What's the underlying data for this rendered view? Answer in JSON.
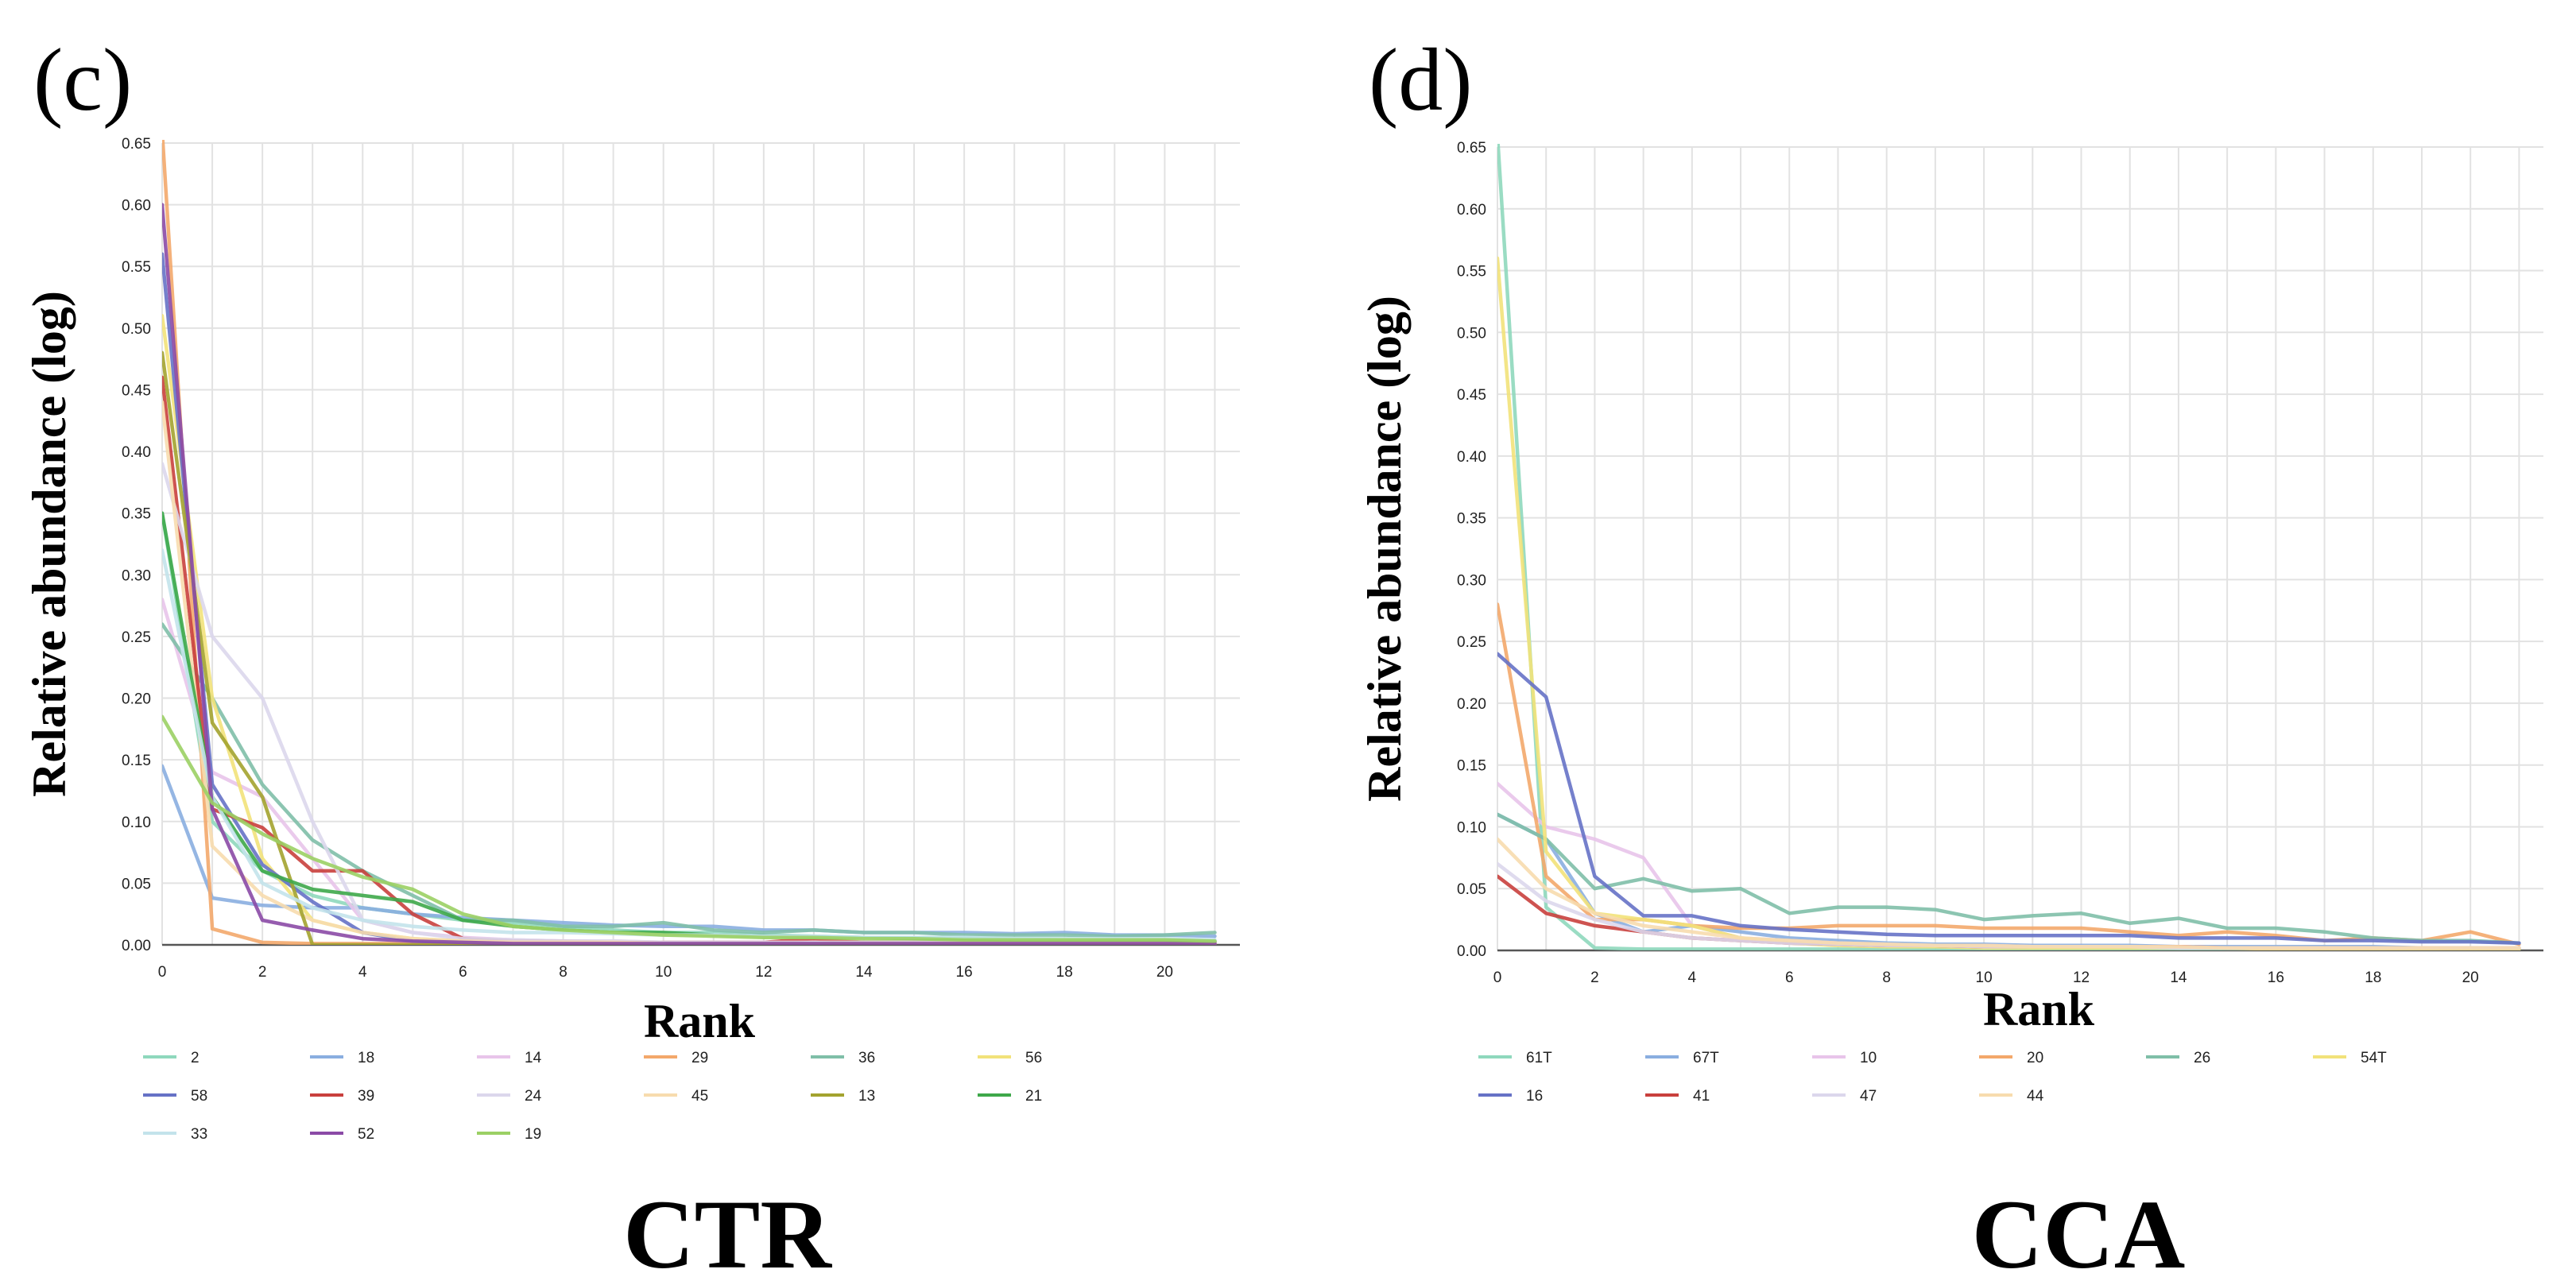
{
  "panels": [
    {
      "letter": "(c)",
      "title": "CTR"
    },
    {
      "letter": "(d)",
      "title": "CCA"
    }
  ],
  "chart_data": [
    {
      "type": "line",
      "xlabel": "Rank",
      "ylabel": "Relative abundance (log)",
      "xlim": [
        0,
        21.5
      ],
      "ylim": [
        0,
        0.65
      ],
      "xticks": [
        0,
        2,
        4,
        6,
        8,
        10,
        12,
        14,
        16,
        18,
        20
      ],
      "yticks": [
        0.0,
        0.05,
        0.1,
        0.15,
        0.2,
        0.25,
        0.3,
        0.35,
        0.4,
        0.45,
        0.5,
        0.55,
        0.6,
        0.65
      ],
      "grid": true,
      "legend_position": "bottom",
      "series": [
        {
          "name": "2",
          "color": "#8fd8bd",
          "values": [
            0.35,
            0.1,
            0.06,
            0.04,
            0.03,
            0.025,
            0.02,
            0.018,
            0.015,
            0.012,
            0.01,
            0.01,
            0.008,
            0.007,
            0.006,
            0.006,
            0.005,
            0.005,
            0.004,
            0.004,
            0.004,
            0.003
          ]
        },
        {
          "name": "18",
          "color": "#8aaee0",
          "values": [
            0.145,
            0.038,
            0.032,
            0.03,
            0.03,
            0.025,
            0.022,
            0.02,
            0.018,
            0.016,
            0.015,
            0.015,
            0.012,
            0.012,
            0.01,
            0.01,
            0.01,
            0.009,
            0.01,
            0.008,
            0.008,
            0.007
          ]
        },
        {
          "name": "14",
          "color": "#e8c4ea",
          "values": [
            0.28,
            0.14,
            0.12,
            0.07,
            0.02,
            0.01,
            0.006,
            0.004,
            0.003,
            0.003,
            0.002,
            0.002,
            0.002,
            0.002,
            0.002,
            0.001,
            0.001,
            0.001,
            0.001,
            0.001,
            0.001,
            0.001
          ]
        },
        {
          "name": "29",
          "color": "#f3a86b",
          "values": [
            0.66,
            0.013,
            0.002,
            0.001,
            0.001,
            0.001,
            0.001,
            0.001,
            0.001,
            0.001,
            0.001,
            0.001,
            0.001,
            0.001,
            0.001,
            0.001,
            0.001,
            0.001,
            0.001,
            0.001,
            0.001,
            0.001
          ]
        },
        {
          "name": "36",
          "color": "#7fbfa8",
          "values": [
            0.26,
            0.2,
            0.13,
            0.085,
            0.06,
            0.04,
            0.02,
            0.02,
            0.015,
            0.015,
            0.018,
            0.012,
            0.01,
            0.012,
            0.01,
            0.01,
            0.008,
            0.008,
            0.008,
            0.007,
            0.008,
            0.01
          ]
        },
        {
          "name": "56",
          "color": "#f2e27a",
          "values": [
            0.51,
            0.2,
            0.07,
            0.02,
            0.01,
            0.005,
            0.003,
            0.002,
            0.002,
            0.002,
            0.002,
            0.001,
            0.001,
            0.001,
            0.001,
            0.001,
            0.001,
            0.001,
            0.001,
            0.001,
            0.001,
            0.001
          ]
        },
        {
          "name": "58",
          "color": "#6672c6",
          "values": [
            0.56,
            0.13,
            0.065,
            0.035,
            0.01,
            0.003,
            0.002,
            0.001,
            0.001,
            0.001,
            0.001,
            0.001,
            0.001,
            0.001,
            0.001,
            0.001,
            0.001,
            0.001,
            0.001,
            0.001,
            0.001,
            0.001
          ]
        },
        {
          "name": "39",
          "color": "#c9403d",
          "values": [
            0.46,
            0.11,
            0.095,
            0.06,
            0.06,
            0.025,
            0.005,
            0.003,
            0.003,
            0.002,
            0.002,
            0.002,
            0.002,
            0.005,
            0.002,
            0.002,
            0.002,
            0.002,
            0.002,
            0.002,
            0.002,
            0.002
          ]
        },
        {
          "name": "24",
          "color": "#dcd7ec",
          "values": [
            0.39,
            0.25,
            0.2,
            0.1,
            0.02,
            0.01,
            0.005,
            0.004,
            0.003,
            0.003,
            0.002,
            0.002,
            0.002,
            0.002,
            0.002,
            0.002,
            0.002,
            0.002,
            0.002,
            0.002,
            0.002,
            0.002
          ]
        },
        {
          "name": "45",
          "color": "#f7dcae",
          "values": [
            0.44,
            0.08,
            0.04,
            0.02,
            0.01,
            0.005,
            0.003,
            0.002,
            0.002,
            0.002,
            0.001,
            0.001,
            0.001,
            0.001,
            0.001,
            0.001,
            0.001,
            0.001,
            0.001,
            0.001,
            0.001,
            0.001
          ]
        },
        {
          "name": "13",
          "color": "#a3a32f",
          "values": [
            0.48,
            0.18,
            0.12,
            0.0,
            0.0,
            0.0,
            0.0,
            0.0,
            0.0,
            0.0,
            0.0,
            0.0,
            0.0,
            0.0,
            0.0,
            0.0,
            0.0,
            0.0,
            0.0,
            0.0,
            0.0,
            0.0
          ]
        },
        {
          "name": "21",
          "color": "#3ea84a",
          "values": [
            0.35,
            0.12,
            0.06,
            0.045,
            0.04,
            0.035,
            0.02,
            0.015,
            0.012,
            0.01,
            0.01,
            0.008,
            0.007,
            0.006,
            0.006,
            0.005,
            0.005,
            0.004,
            0.004,
            0.004,
            0.004,
            0.003
          ]
        },
        {
          "name": "33",
          "color": "#c3e3eb",
          "values": [
            0.32,
            0.12,
            0.05,
            0.03,
            0.02,
            0.015,
            0.012,
            0.01,
            0.01,
            0.009,
            0.008,
            0.008,
            0.007,
            0.007,
            0.006,
            0.006,
            0.006,
            0.005,
            0.005,
            0.005,
            0.005,
            0.004
          ]
        },
        {
          "name": "52",
          "color": "#8b4aa6",
          "values": [
            0.6,
            0.11,
            0.02,
            0.012,
            0.005,
            0.003,
            0.002,
            0.001,
            0.001,
            0.001,
            0.001,
            0.001,
            0.001,
            0.001,
            0.001,
            0.001,
            0.001,
            0.001,
            0.001,
            0.001,
            0.001,
            0.001
          ]
        },
        {
          "name": "19",
          "color": "#9bd064",
          "values": [
            0.185,
            0.115,
            0.09,
            0.07,
            0.055,
            0.045,
            0.025,
            0.015,
            0.012,
            0.01,
            0.008,
            0.007,
            0.006,
            0.006,
            0.005,
            0.005,
            0.004,
            0.004,
            0.004,
            0.004,
            0.004,
            0.003
          ]
        }
      ]
    },
    {
      "type": "line",
      "xlabel": "Rank",
      "ylabel": "Relative abundance (log)",
      "xlim": [
        0,
        21.5
      ],
      "ylim": [
        0,
        0.65
      ],
      "xticks": [
        0,
        2,
        4,
        6,
        8,
        10,
        12,
        14,
        16,
        18,
        20
      ],
      "yticks": [
        0.0,
        0.05,
        0.1,
        0.15,
        0.2,
        0.25,
        0.3,
        0.35,
        0.4,
        0.45,
        0.5,
        0.55,
        0.6,
        0.65
      ],
      "grid": true,
      "legend_position": "bottom",
      "series": [
        {
          "name": "61T",
          "color": "#8fd8bd",
          "values": [
            0.66,
            0.035,
            0.002,
            0.001,
            0.001,
            0.001,
            0.001,
            0.001,
            0.001,
            0.001,
            0.001,
            0.001,
            0.001,
            0.001,
            0.001,
            0.001,
            0.001,
            0.001,
            0.001,
            0.001,
            0.001,
            0.001
          ]
        },
        {
          "name": "67T",
          "color": "#8aaee0",
          "values": [
            0.11,
            0.09,
            0.03,
            0.015,
            0.02,
            0.015,
            0.01,
            0.008,
            0.006,
            0.005,
            0.005,
            0.004,
            0.004,
            0.004,
            0.003,
            0.003,
            0.003,
            0.003,
            0.003,
            0.002,
            0.002,
            0.002
          ]
        },
        {
          "name": "10",
          "color": "#e8c4ea",
          "values": [
            0.135,
            0.1,
            0.09,
            0.075,
            0.02,
            0.01,
            0.008,
            0.006,
            0.005,
            0.004,
            0.004,
            0.003,
            0.003,
            0.003,
            0.003,
            0.002,
            0.002,
            0.002,
            0.002,
            0.002,
            0.002,
            0.002
          ]
        },
        {
          "name": "20",
          "color": "#f3a86b",
          "values": [
            0.28,
            0.06,
            0.025,
            0.025,
            0.02,
            0.018,
            0.018,
            0.02,
            0.02,
            0.02,
            0.018,
            0.018,
            0.018,
            0.015,
            0.012,
            0.015,
            0.012,
            0.008,
            0.01,
            0.008,
            0.015,
            0.005
          ]
        },
        {
          "name": "26",
          "color": "#7fbfa8",
          "values": [
            0.11,
            0.09,
            0.05,
            0.058,
            0.048,
            0.05,
            0.03,
            0.035,
            0.035,
            0.033,
            0.025,
            0.028,
            0.03,
            0.022,
            0.026,
            0.018,
            0.018,
            0.015,
            0.01,
            0.008,
            0.008,
            0.006
          ]
        },
        {
          "name": "54T",
          "color": "#f2e27a",
          "values": [
            0.56,
            0.08,
            0.03,
            0.025,
            0.02,
            0.01,
            0.006,
            0.004,
            0.003,
            0.003,
            0.002,
            0.002,
            0.002,
            0.002,
            0.002,
            0.002,
            0.001,
            0.001,
            0.001,
            0.001,
            0.001,
            0.001
          ]
        },
        {
          "name": "16",
          "color": "#6672c6",
          "values": [
            0.24,
            0.205,
            0.06,
            0.028,
            0.028,
            0.02,
            0.017,
            0.015,
            0.013,
            0.012,
            0.012,
            0.012,
            0.012,
            0.012,
            0.01,
            0.01,
            0.01,
            0.008,
            0.008,
            0.007,
            0.007,
            0.006
          ]
        },
        {
          "name": "41",
          "color": "#c9403d",
          "values": [
            0.06,
            0.03,
            0.02,
            0.015,
            0.01,
            0.008,
            0.006,
            0.005,
            0.004,
            0.004,
            0.003,
            0.003,
            0.003,
            0.003,
            0.003,
            0.002,
            0.002,
            0.002,
            0.002,
            0.002,
            0.002,
            0.002
          ]
        },
        {
          "name": "47",
          "color": "#dcd7ec",
          "values": [
            0.07,
            0.04,
            0.025,
            0.015,
            0.01,
            0.008,
            0.006,
            0.005,
            0.004,
            0.004,
            0.003,
            0.003,
            0.003,
            0.003,
            0.002,
            0.002,
            0.002,
            0.002,
            0.002,
            0.002,
            0.002,
            0.002
          ]
        },
        {
          "name": "44",
          "color": "#f7dcae",
          "values": [
            0.09,
            0.05,
            0.03,
            0.02,
            0.015,
            0.01,
            0.008,
            0.006,
            0.005,
            0.004,
            0.004,
            0.003,
            0.003,
            0.003,
            0.003,
            0.002,
            0.002,
            0.002,
            0.002,
            0.002,
            0.002,
            0.002
          ]
        }
      ]
    }
  ]
}
